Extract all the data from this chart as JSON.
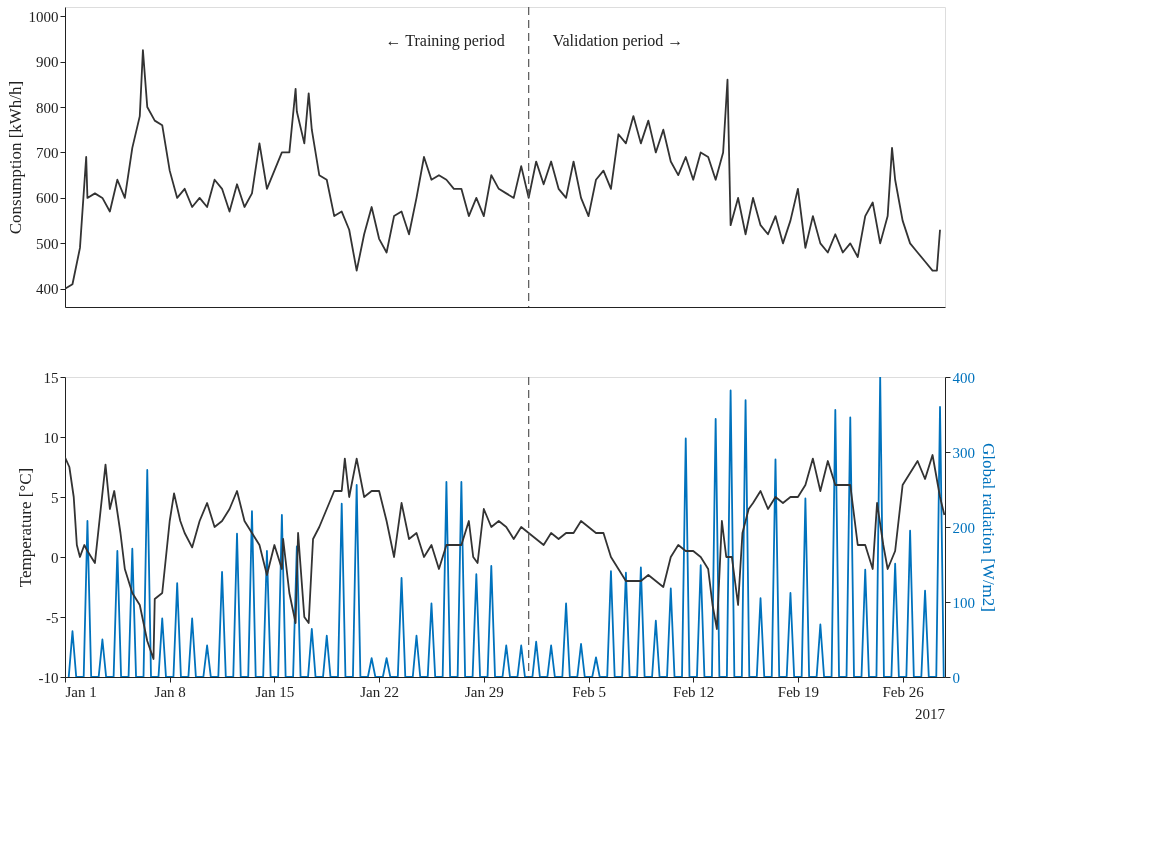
{
  "chart_data": [
    {
      "type": "line",
      "ylabel": "Consumption [kWh/h]",
      "xlim": [
        "2017-01-01T00:00",
        "2017-02-28T20:00"
      ],
      "ylim": [
        360,
        1020
      ],
      "yticks": [
        400,
        500,
        600,
        700,
        800,
        900,
        1000
      ],
      "tick_labels": "y",
      "line_style": "solid",
      "ref_lines": [
        {
          "axis": "x",
          "value": "2017-02-01T00:00",
          "color": "#555555",
          "line_style": "dashed"
        }
      ],
      "annotations": [
        "← Training period",
        "Validation period →"
      ],
      "series": [
        {
          "color": "#333333",
          "x": [
            "2017-01-01T00:00",
            "2017-01-01T12:00",
            "2017-01-02T00:00",
            "2017-01-02T10:00",
            "2017-01-02T12:00",
            "2017-01-03T00:00",
            "2017-01-03T12:00",
            "2017-01-04T00:00",
            "2017-01-04T12:00",
            "2017-01-05T00:00",
            "2017-01-05T12:00",
            "2017-01-06T00:00",
            "2017-01-06T05:00",
            "2017-01-06T12:00",
            "2017-01-07T00:00",
            "2017-01-07T12:00",
            "2017-01-08T00:00",
            "2017-01-08T12:00",
            "2017-01-09T00:00",
            "2017-01-09T12:00",
            "2017-01-10T00:00",
            "2017-01-10T12:00",
            "2017-01-11T00:00",
            "2017-01-11T12:00",
            "2017-01-12T00:00",
            "2017-01-12T12:00",
            "2017-01-13T00:00",
            "2017-01-13T12:00",
            "2017-01-14T00:00",
            "2017-01-14T12:00",
            "2017-01-15T00:00",
            "2017-01-15T12:00",
            "2017-01-16T00:00",
            "2017-01-16T10:00",
            "2017-01-16T12:00",
            "2017-01-17T00:00",
            "2017-01-17T07:00",
            "2017-01-17T12:00",
            "2017-01-18T00:00",
            "2017-01-18T12:00",
            "2017-01-19T00:00",
            "2017-01-19T12:00",
            "2017-01-20T00:00",
            "2017-01-20T12:00",
            "2017-01-21T00:00",
            "2017-01-21T12:00",
            "2017-01-22T00:00",
            "2017-01-22T12:00",
            "2017-01-23T00:00",
            "2017-01-23T12:00",
            "2017-01-24T00:00",
            "2017-01-24T12:00",
            "2017-01-25T00:00",
            "2017-01-25T12:00",
            "2017-01-26T00:00",
            "2017-01-26T12:00",
            "2017-01-27T00:00",
            "2017-01-27T12:00",
            "2017-01-28T00:00",
            "2017-01-28T12:00",
            "2017-01-29T00:00",
            "2017-01-29T12:00",
            "2017-01-30T00:00",
            "2017-01-30T12:00",
            "2017-01-31T00:00",
            "2017-01-31T12:00",
            "2017-02-01T00:00",
            "2017-02-01T12:00",
            "2017-02-02T00:00",
            "2017-02-02T12:00",
            "2017-02-03T00:00",
            "2017-02-03T12:00",
            "2017-02-04T00:00",
            "2017-02-04T12:00",
            "2017-02-05T00:00",
            "2017-02-05T12:00",
            "2017-02-06T00:00",
            "2017-02-06T12:00",
            "2017-02-07T00:00",
            "2017-02-07T12:00",
            "2017-02-08T00:00",
            "2017-02-08T12:00",
            "2017-02-09T00:00",
            "2017-02-09T12:00",
            "2017-02-10T00:00",
            "2017-02-10T12:00",
            "2017-02-11T00:00",
            "2017-02-11T12:00",
            "2017-02-12T00:00",
            "2017-02-12T12:00",
            "2017-02-13T00:00",
            "2017-02-13T12:00",
            "2017-02-14T00:00",
            "2017-02-14T07:00",
            "2017-02-14T12:00",
            "2017-02-15T00:00",
            "2017-02-15T12:00",
            "2017-02-16T00:00",
            "2017-02-16T12:00",
            "2017-02-17T00:00",
            "2017-02-17T12:00",
            "2017-02-18T00:00",
            "2017-02-18T12:00",
            "2017-02-19T00:00",
            "2017-02-19T12:00",
            "2017-02-20T00:00",
            "2017-02-20T12:00",
            "2017-02-21T00:00",
            "2017-02-21T12:00",
            "2017-02-22T00:00",
            "2017-02-22T12:00",
            "2017-02-23T00:00",
            "2017-02-23T12:00",
            "2017-02-24T00:00",
            "2017-02-24T12:00",
            "2017-02-25T00:00",
            "2017-02-25T07:00",
            "2017-02-25T12:00",
            "2017-02-26T00:00",
            "2017-02-26T12:00",
            "2017-02-27T00:00",
            "2017-02-27T12:00",
            "2017-02-28T00:00",
            "2017-02-28T07:00",
            "2017-02-28T12:00"
          ],
          "values": [
            400,
            410,
            490,
            690,
            600,
            610,
            600,
            570,
            640,
            600,
            710,
            780,
            925,
            800,
            770,
            760,
            660,
            600,
            620,
            580,
            600,
            580,
            640,
            620,
            570,
            630,
            580,
            610,
            720,
            620,
            660,
            700,
            700,
            840,
            790,
            720,
            830,
            750,
            650,
            640,
            560,
            570,
            530,
            440,
            520,
            580,
            510,
            480,
            560,
            570,
            520,
            600,
            690,
            640,
            650,
            640,
            620,
            620,
            560,
            600,
            560,
            650,
            620,
            610,
            600,
            670,
            600,
            680,
            630,
            680,
            620,
            600,
            680,
            600,
            560,
            640,
            660,
            620,
            740,
            720,
            780,
            720,
            770,
            700,
            750,
            680,
            650,
            690,
            640,
            700,
            690,
            640,
            700,
            860,
            540,
            600,
            520,
            600,
            540,
            520,
            560,
            500,
            550,
            620,
            490,
            560,
            500,
            480,
            520,
            480,
            500,
            470,
            560,
            590,
            500,
            560,
            710,
            640,
            550,
            500,
            480,
            460,
            440,
            440,
            530
          ]
        }
      ]
    },
    {
      "type": "line",
      "ylabel": "Temperature [°C]",
      "y2label": "Global radiation [W/m2]",
      "xlim": [
        "2017-01-01T00:00",
        "2017-02-28T20:00"
      ],
      "ylim": [
        -10,
        15
      ],
      "yticks": [
        -10,
        -5,
        0,
        5,
        10,
        15
      ],
      "y2lim": [
        0,
        400
      ],
      "y2ticks": [
        0,
        100,
        200,
        300,
        400
      ],
      "line_style": "solid",
      "xticks": [
        {
          "value": "2017-01-01",
          "label": "Jan 1"
        },
        {
          "value": "2017-01-08",
          "label": "Jan 8"
        },
        {
          "value": "2017-01-15",
          "label": "Jan 15"
        },
        {
          "value": "2017-01-22",
          "label": "Jan 22"
        },
        {
          "value": "2017-01-29",
          "label": "Jan 29"
        },
        {
          "value": "2017-02-05",
          "label": "Feb 5"
        },
        {
          "value": "2017-02-12",
          "label": "Feb 12"
        },
        {
          "value": "2017-02-19",
          "label": "Feb 19"
        },
        {
          "value": "2017-02-26",
          "label": "Feb 26"
        }
      ],
      "ref_lines": [
        {
          "axis": "x",
          "value": "2017-02-01T00:00",
          "color": "#555555",
          "line_style": "dashed"
        }
      ],
      "annotations": [
        "2017"
      ],
      "series": [
        {
          "color": "#0072bd",
          "axis": "y2",
          "x": [
            "2017-01-01T06:00",
            "2017-01-01T12:00",
            "2017-01-01T18:00",
            "2017-01-02T06:00",
            "2017-01-02T12:00",
            "2017-01-02T18:00",
            "2017-01-03T06:00",
            "2017-01-03T12:00",
            "2017-01-03T18:00",
            "2017-01-04T06:00",
            "2017-01-04T12:00",
            "2017-01-04T18:00",
            "2017-01-05T06:00",
            "2017-01-05T12:00",
            "2017-01-05T18:00",
            "2017-01-06T06:00",
            "2017-01-06T12:00",
            "2017-01-06T18:00",
            "2017-01-07T06:00",
            "2017-01-07T12:00",
            "2017-01-07T18:00",
            "2017-01-08T06:00",
            "2017-01-08T12:00",
            "2017-01-08T18:00",
            "2017-01-09T06:00",
            "2017-01-09T12:00",
            "2017-01-09T18:00",
            "2017-01-10T06:00",
            "2017-01-10T12:00",
            "2017-01-10T18:00",
            "2017-01-11T06:00",
            "2017-01-11T12:00",
            "2017-01-11T18:00",
            "2017-01-12T06:00",
            "2017-01-12T12:00",
            "2017-01-12T18:00",
            "2017-01-13T06:00",
            "2017-01-13T12:00",
            "2017-01-13T18:00",
            "2017-01-14T06:00",
            "2017-01-14T12:00",
            "2017-01-14T18:00",
            "2017-01-15T06:00",
            "2017-01-15T12:00",
            "2017-01-15T18:00",
            "2017-01-16T06:00",
            "2017-01-16T12:00",
            "2017-01-16T18:00",
            "2017-01-17T06:00",
            "2017-01-17T12:00",
            "2017-01-17T18:00",
            "2017-01-18T06:00",
            "2017-01-18T12:00",
            "2017-01-18T18:00",
            "2017-01-19T06:00",
            "2017-01-19T12:00",
            "2017-01-19T18:00",
            "2017-01-20T06:00",
            "2017-01-20T12:00",
            "2017-01-20T18:00",
            "2017-01-21T06:00",
            "2017-01-21T12:00",
            "2017-01-21T18:00",
            "2017-01-22T06:00",
            "2017-01-22T12:00",
            "2017-01-22T18:00",
            "2017-01-23T06:00",
            "2017-01-23T12:00",
            "2017-01-23T18:00",
            "2017-01-24T06:00",
            "2017-01-24T12:00",
            "2017-01-24T18:00",
            "2017-01-25T06:00",
            "2017-01-25T12:00",
            "2017-01-25T18:00",
            "2017-01-26T06:00",
            "2017-01-26T12:00",
            "2017-01-26T18:00",
            "2017-01-27T06:00",
            "2017-01-27T12:00",
            "2017-01-27T18:00",
            "2017-01-28T06:00",
            "2017-01-28T12:00",
            "2017-01-28T18:00",
            "2017-01-29T06:00",
            "2017-01-29T12:00",
            "2017-01-29T18:00",
            "2017-01-30T06:00",
            "2017-01-30T12:00",
            "2017-01-30T18:00",
            "2017-01-31T06:00",
            "2017-01-31T12:00",
            "2017-01-31T18:00",
            "2017-02-01T06:00",
            "2017-02-01T12:00",
            "2017-02-01T18:00",
            "2017-02-02T06:00",
            "2017-02-02T12:00",
            "2017-02-02T18:00",
            "2017-02-03T06:00",
            "2017-02-03T12:00",
            "2017-02-03T18:00",
            "2017-02-04T06:00",
            "2017-02-04T12:00",
            "2017-02-04T18:00",
            "2017-02-05T06:00",
            "2017-02-05T12:00",
            "2017-02-05T18:00",
            "2017-02-06T06:00",
            "2017-02-06T12:00",
            "2017-02-06T18:00",
            "2017-02-07T06:00",
            "2017-02-07T12:00",
            "2017-02-07T18:00",
            "2017-02-08T06:00",
            "2017-02-08T12:00",
            "2017-02-08T18:00",
            "2017-02-09T06:00",
            "2017-02-09T12:00",
            "2017-02-09T18:00",
            "2017-02-10T06:00",
            "2017-02-10T12:00",
            "2017-02-10T18:00",
            "2017-02-11T06:00",
            "2017-02-11T12:00",
            "2017-02-11T18:00",
            "2017-02-12T06:00",
            "2017-02-12T12:00",
            "2017-02-12T18:00",
            "2017-02-13T06:00",
            "2017-02-13T12:00",
            "2017-02-13T18:00",
            "2017-02-14T06:00",
            "2017-02-14T12:00",
            "2017-02-14T18:00",
            "2017-02-15T06:00",
            "2017-02-15T12:00",
            "2017-02-15T18:00",
            "2017-02-16T06:00",
            "2017-02-16T12:00",
            "2017-02-16T18:00",
            "2017-02-17T06:00",
            "2017-02-17T12:00",
            "2017-02-17T18:00",
            "2017-02-18T06:00",
            "2017-02-18T12:00",
            "2017-02-18T18:00",
            "2017-02-19T06:00",
            "2017-02-19T12:00",
            "2017-02-19T18:00",
            "2017-02-20T06:00",
            "2017-02-20T12:00",
            "2017-02-20T18:00",
            "2017-02-21T06:00",
            "2017-02-21T12:00",
            "2017-02-21T18:00",
            "2017-02-22T06:00",
            "2017-02-22T12:00",
            "2017-02-22T18:00",
            "2017-02-23T06:00",
            "2017-02-23T12:00",
            "2017-02-23T18:00",
            "2017-02-24T06:00",
            "2017-02-24T12:00",
            "2017-02-24T18:00",
            "2017-02-25T06:00",
            "2017-02-25T12:00",
            "2017-02-25T18:00",
            "2017-02-26T06:00",
            "2017-02-26T12:00",
            "2017-02-26T18:00",
            "2017-02-27T06:00",
            "2017-02-27T12:00",
            "2017-02-27T18:00",
            "2017-02-28T06:00",
            "2017-02-28T12:00",
            "2017-02-28T18:00"
          ],
          "values": [
            0,
            61,
            0,
            0,
            208,
            0,
            0,
            50,
            0,
            0,
            168,
            0,
            0,
            171,
            0,
            0,
            276,
            0,
            0,
            78,
            0,
            0,
            125,
            0,
            0,
            78,
            0,
            0,
            42,
            0,
            0,
            140,
            0,
            0,
            191,
            0,
            0,
            221,
            0,
            0,
            168,
            0,
            0,
            216,
            0,
            0,
            174,
            0,
            0,
            64,
            0,
            0,
            55,
            0,
            0,
            231,
            0,
            0,
            256,
            0,
            0,
            25,
            0,
            0,
            25,
            0,
            0,
            132,
            0,
            0,
            55,
            0,
            0,
            98,
            0,
            0,
            260,
            0,
            0,
            260,
            0,
            0,
            137,
            0,
            0,
            148,
            0,
            0,
            42,
            0,
            0,
            42,
            0,
            0,
            47,
            0,
            0,
            42,
            0,
            0,
            98,
            0,
            0,
            44,
            0,
            0,
            26,
            0,
            0,
            141,
            0,
            0,
            139,
            0,
            0,
            146,
            0,
            0,
            75,
            0,
            0,
            118,
            0,
            0,
            318,
            0,
            0,
            149,
            0,
            0,
            344,
            0,
            0,
            382,
            0,
            0,
            369,
            0,
            0,
            105,
            0,
            0,
            290,
            0,
            0,
            112,
            0,
            0,
            238,
            0,
            0,
            70,
            0,
            0,
            356,
            0,
            0,
            346,
            0,
            0,
            143,
            0,
            0,
            400,
            0,
            0,
            151,
            0,
            0,
            195,
            0,
            0,
            115,
            0,
            0,
            360,
            0
          ]
        },
        {
          "color": "#333333",
          "x": [
            "2017-01-01T00:00",
            "2017-01-01T07:00",
            "2017-01-01T14:00",
            "2017-01-01T19:00",
            "2017-01-02T00:00",
            "2017-01-02T07:00",
            "2017-01-02T12:00",
            "2017-01-03T00:00",
            "2017-01-03T17:00",
            "2017-01-04T00:00",
            "2017-01-04T07:00",
            "2017-01-04T17:00",
            "2017-01-05T00:00",
            "2017-01-05T12:00",
            "2017-01-06T00:00",
            "2017-01-06T12:00",
            "2017-01-06T22:00",
            "2017-01-07T00:00",
            "2017-01-07T12:00",
            "2017-01-08T00:00",
            "2017-01-08T07:00",
            "2017-01-08T17:00",
            "2017-01-09T00:00",
            "2017-01-09T12:00",
            "2017-01-10T00:00",
            "2017-01-10T12:00",
            "2017-01-11T00:00",
            "2017-01-11T12:00",
            "2017-01-12T00:00",
            "2017-01-12T12:00",
            "2017-01-13T00:00",
            "2017-01-13T12:00",
            "2017-01-14T00:00",
            "2017-01-14T12:00",
            "2017-01-15T00:00",
            "2017-01-15T12:00",
            "2017-01-15T14:00",
            "2017-01-16T00:00",
            "2017-01-16T10:00",
            "2017-01-16T14:00",
            "2017-01-17T00:00",
            "2017-01-17T07:00",
            "2017-01-17T14:00",
            "2017-01-18T00:00",
            "2017-01-18T12:00",
            "2017-01-19T00:00",
            "2017-01-19T12:00",
            "2017-01-19T17:00",
            "2017-01-20T00:00",
            "2017-01-20T12:00",
            "2017-01-21T00:00",
            "2017-01-21T12:00",
            "2017-01-22T00:00",
            "2017-01-22T12:00",
            "2017-01-23T00:00",
            "2017-01-23T12:00",
            "2017-01-24T00:00",
            "2017-01-24T12:00",
            "2017-01-25T00:00",
            "2017-01-25T12:00",
            "2017-01-26T00:00",
            "2017-01-26T12:00",
            "2017-01-27T00:00",
            "2017-01-27T12:00",
            "2017-01-28T00:00",
            "2017-01-28T07:00",
            "2017-01-28T14:00",
            "2017-01-29T00:00",
            "2017-01-29T12:00",
            "2017-01-30T00:00",
            "2017-01-30T12:00",
            "2017-01-31T00:00",
            "2017-01-31T12:00",
            "2017-02-01T00:00",
            "2017-02-01T12:00",
            "2017-02-02T00:00",
            "2017-02-02T12:00",
            "2017-02-03T00:00",
            "2017-02-03T12:00",
            "2017-02-04T00:00",
            "2017-02-04T12:00",
            "2017-02-05T00:00",
            "2017-02-05T12:00",
            "2017-02-06T00:00",
            "2017-02-06T12:00",
            "2017-02-07T00:00",
            "2017-02-07T12:00",
            "2017-02-08T00:00",
            "2017-02-08T12:00",
            "2017-02-09T00:00",
            "2017-02-09T12:00",
            "2017-02-10T00:00",
            "2017-02-10T12:00",
            "2017-02-11T00:00",
            "2017-02-11T12:00",
            "2017-02-12T00:00",
            "2017-02-12T12:00",
            "2017-02-13T00:00",
            "2017-02-13T07:00",
            "2017-02-13T14:00",
            "2017-02-13T22:00",
            "2017-02-14T05:00",
            "2017-02-14T14:00",
            "2017-02-15T00:00",
            "2017-02-15T07:00",
            "2017-02-15T17:00",
            "2017-02-16T00:00",
            "2017-02-16T12:00",
            "2017-02-17T00:00",
            "2017-02-17T12:00",
            "2017-02-18T00:00",
            "2017-02-18T12:00",
            "2017-02-19T00:00",
            "2017-02-19T12:00",
            "2017-02-20T00:00",
            "2017-02-20T12:00",
            "2017-02-21T00:00",
            "2017-02-21T12:00",
            "2017-02-22T00:00",
            "2017-02-22T12:00",
            "2017-02-23T00:00",
            "2017-02-23T12:00",
            "2017-02-24T00:00",
            "2017-02-24T07:00",
            "2017-02-24T17:00",
            "2017-02-25T00:00",
            "2017-02-25T12:00",
            "2017-02-26T00:00",
            "2017-02-26T12:00",
            "2017-02-27T00:00",
            "2017-02-27T12:00",
            "2017-02-28T00:00",
            "2017-02-28T12:00",
            "2017-02-28T19:00"
          ],
          "values": [
            8.3,
            7.5,
            5,
            1,
            0,
            1,
            0.5,
            -0.5,
            7.7,
            4,
            5.5,
            2,
            -1,
            -3,
            -4,
            -7,
            -8.5,
            -3.5,
            -3,
            3,
            5.3,
            3,
            2,
            0.8,
            3,
            4.5,
            2.5,
            3,
            4,
            5.5,
            3,
            2,
            1,
            -1.5,
            1,
            -1,
            1.5,
            -3,
            -5.5,
            2,
            -5,
            -5.5,
            1.5,
            2.5,
            4,
            5.5,
            5.5,
            8.2,
            5,
            8.2,
            5,
            5.5,
            5.5,
            3,
            0,
            4.5,
            1.5,
            2,
            0,
            1,
            -1,
            1,
            1,
            1,
            3,
            0,
            -0.5,
            4,
            2.5,
            3,
            2.5,
            1.5,
            2.5,
            2,
            1.5,
            1,
            2,
            1.5,
            2,
            2,
            3,
            2.5,
            2,
            2,
            0,
            -1,
            -2,
            -2,
            -2,
            -1.5,
            -2,
            -2.5,
            0,
            1,
            0.5,
            0.5,
            0,
            -1,
            -4,
            -6,
            3,
            0,
            0,
            -4,
            2,
            4,
            4.5,
            5.5,
            4,
            5,
            4.5,
            5,
            5,
            6,
            8.2,
            5.5,
            8,
            6,
            6,
            6,
            1,
            1,
            -1,
            4.5,
            1,
            -1,
            0.5,
            6,
            7,
            8,
            6.5,
            8.5,
            5,
            3.5
          ]
        }
      ]
    }
  ]
}
